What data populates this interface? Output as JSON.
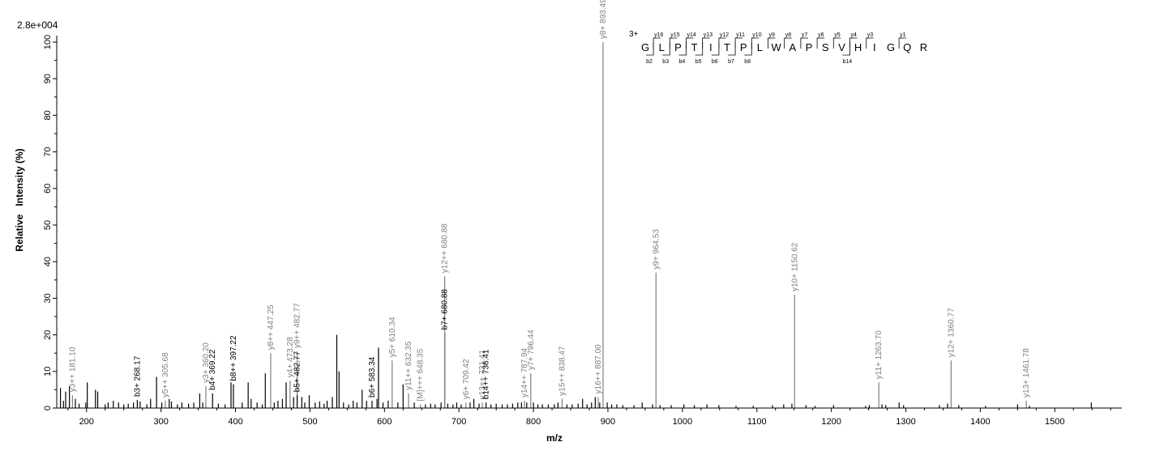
{
  "chart_data": {
    "type": "bar",
    "scale_label": "2.8e+004",
    "xlabel": "m/z",
    "ylabel": "Relative   Intensity (%)",
    "xlim": [
      160,
      1590
    ],
    "ylim": [
      0,
      100
    ],
    "x_ticks": [
      200,
      300,
      400,
      500,
      600,
      700,
      800,
      900,
      1000,
      1100,
      1200,
      1300,
      1400,
      1500
    ],
    "y_ticks": [
      0,
      10,
      20,
      30,
      40,
      50,
      60,
      70,
      80,
      90,
      100
    ],
    "colors": {
      "b_ion": "#000000",
      "y_ion": "#808080",
      "noise": "#000000"
    },
    "labeled_peaks": [
      {
        "x": 181.1,
        "y": 3.5,
        "label": "y3++ 181.10",
        "type": "y"
      },
      {
        "x": 268.17,
        "y": 2.2,
        "label": "b3+ 268.17",
        "type": "b"
      },
      {
        "x": 305.68,
        "y": 2.0,
        "label": "y5++ 305.68",
        "type": "y"
      },
      {
        "x": 360.2,
        "y": 6.0,
        "label": "y3+ 360.20",
        "type": "y"
      },
      {
        "x": 369.22,
        "y": 4.0,
        "label": "b4+ 369.22",
        "type": "b"
      },
      {
        "x": 397.22,
        "y": 6.5,
        "label": "b8++ 397.22",
        "type": "b"
      },
      {
        "x": 447.25,
        "y": 15.0,
        "label": "y8++ 447.25",
        "type": "y"
      },
      {
        "x": 473.28,
        "y": 7.5,
        "label": "y4+ 473.28",
        "type": "y"
      },
      {
        "x": 482.77,
        "y": 15.5,
        "label": "y9++ 482.77",
        "type": "y"
      },
      {
        "x": 482.77,
        "y": 3.5,
        "label": "b5+ 482.77",
        "type": "b"
      },
      {
        "x": 583.34,
        "y": 2.0,
        "label": "b6+ 583.34",
        "type": "b"
      },
      {
        "x": 610.34,
        "y": 13.0,
        "label": "y5+ 610.34",
        "type": "y"
      },
      {
        "x": 632.35,
        "y": 4.0,
        "label": "y11++ 632.35",
        "type": "y"
      },
      {
        "x": 648.35,
        "y": 1.0,
        "label": "[M]+++ 648.35",
        "type": "y"
      },
      {
        "x": 680.88,
        "y": 20.5,
        "label": "b7+ 680.88",
        "type": "b"
      },
      {
        "x": 680.88,
        "y": 36.0,
        "label": "y12++ 680.88",
        "type": "y"
      },
      {
        "x": 709.42,
        "y": 1.5,
        "label": "y6+ 709.42",
        "type": "y"
      },
      {
        "x": 731.41,
        "y": 1.5,
        "label": "y13++ 731.41",
        "type": "y"
      },
      {
        "x": 736.41,
        "y": 1.5,
        "label": "b14++ 736.41",
        "type": "b"
      },
      {
        "x": 787.94,
        "y": 2.0,
        "label": "y14++ 787.94",
        "type": "y"
      },
      {
        "x": 796.44,
        "y": 9.5,
        "label": "y7+ 796.44",
        "type": "y"
      },
      {
        "x": 838.47,
        "y": 2.5,
        "label": "y15++ 838.47",
        "type": "y"
      },
      {
        "x": 887.0,
        "y": 3.0,
        "label": "y16++ 887.00",
        "type": "y"
      },
      {
        "x": 893.49,
        "y": 100,
        "label": "y8+ 893.49",
        "type": "y"
      },
      {
        "x": 964.53,
        "y": 37.0,
        "label": "y9+ 964.53",
        "type": "y"
      },
      {
        "x": 1150.62,
        "y": 31.0,
        "label": "y10+ 1150.62",
        "type": "y"
      },
      {
        "x": 1263.7,
        "y": 7.0,
        "label": "y11+ 1263.70",
        "type": "y"
      },
      {
        "x": 1360.77,
        "y": 13.0,
        "label": "y12+ 1360.77",
        "type": "y"
      },
      {
        "x": 1461.78,
        "y": 2.0,
        "label": "y13+ 1461.78",
        "type": "y"
      }
    ],
    "unlabeled_peaks": [
      {
        "x": 165,
        "y": 5.5
      },
      {
        "x": 169,
        "y": 2.0
      },
      {
        "x": 172,
        "y": 4.5
      },
      {
        "x": 177,
        "y": 6.0
      },
      {
        "x": 185,
        "y": 2.5
      },
      {
        "x": 190,
        "y": 1.2
      },
      {
        "x": 199,
        "y": 1.5
      },
      {
        "x": 201,
        "y": 7.0
      },
      {
        "x": 212,
        "y": 5.0
      },
      {
        "x": 215,
        "y": 4.5
      },
      {
        "x": 225,
        "y": 1.0
      },
      {
        "x": 229,
        "y": 1.5
      },
      {
        "x": 236,
        "y": 2.0
      },
      {
        "x": 243,
        "y": 1.5
      },
      {
        "x": 250,
        "y": 1.0
      },
      {
        "x": 256,
        "y": 1.2
      },
      {
        "x": 263,
        "y": 1.5
      },
      {
        "x": 272,
        "y": 1.8
      },
      {
        "x": 281,
        "y": 1.0
      },
      {
        "x": 286,
        "y": 2.5
      },
      {
        "x": 294,
        "y": 8.5
      },
      {
        "x": 301,
        "y": 1.5
      },
      {
        "x": 311,
        "y": 2.5
      },
      {
        "x": 314,
        "y": 1.8
      },
      {
        "x": 322,
        "y": 1.0
      },
      {
        "x": 328,
        "y": 1.5
      },
      {
        "x": 337,
        "y": 1.2
      },
      {
        "x": 344,
        "y": 1.5
      },
      {
        "x": 352,
        "y": 4.0
      },
      {
        "x": 356,
        "y": 1.5
      },
      {
        "x": 377,
        "y": 1.2
      },
      {
        "x": 386,
        "y": 1.0
      },
      {
        "x": 394,
        "y": 7.0
      },
      {
        "x": 409,
        "y": 1.5
      },
      {
        "x": 417,
        "y": 7.0
      },
      {
        "x": 421,
        "y": 2.5
      },
      {
        "x": 429,
        "y": 1.5
      },
      {
        "x": 436,
        "y": 1.0
      },
      {
        "x": 440,
        "y": 9.5
      },
      {
        "x": 452,
        "y": 1.5
      },
      {
        "x": 457,
        "y": 2.0
      },
      {
        "x": 463,
        "y": 2.5
      },
      {
        "x": 468,
        "y": 7.0
      },
      {
        "x": 478,
        "y": 3.0
      },
      {
        "x": 489,
        "y": 3.0
      },
      {
        "x": 493,
        "y": 1.5
      },
      {
        "x": 499,
        "y": 3.5
      },
      {
        "x": 507,
        "y": 1.5
      },
      {
        "x": 513,
        "y": 1.8
      },
      {
        "x": 519,
        "y": 1.2
      },
      {
        "x": 523,
        "y": 2.0
      },
      {
        "x": 530,
        "y": 3.0
      },
      {
        "x": 536,
        "y": 20.0
      },
      {
        "x": 539,
        "y": 10.0
      },
      {
        "x": 545,
        "y": 1.5
      },
      {
        "x": 552,
        "y": 1.0
      },
      {
        "x": 558,
        "y": 2.0
      },
      {
        "x": 563,
        "y": 1.5
      },
      {
        "x": 570,
        "y": 5.0
      },
      {
        "x": 576,
        "y": 2.0
      },
      {
        "x": 590,
        "y": 2.5
      },
      {
        "x": 592,
        "y": 16.5
      },
      {
        "x": 598,
        "y": 1.5
      },
      {
        "x": 605,
        "y": 2.0
      },
      {
        "x": 618,
        "y": 1.5
      },
      {
        "x": 625,
        "y": 6.5
      },
      {
        "x": 640,
        "y": 1.5
      },
      {
        "x": 655,
        "y": 1.0
      },
      {
        "x": 662,
        "y": 1.2
      },
      {
        "x": 668,
        "y": 1.0
      },
      {
        "x": 676,
        "y": 1.5
      },
      {
        "x": 685,
        "y": 1.2
      },
      {
        "x": 692,
        "y": 1.0
      },
      {
        "x": 697,
        "y": 1.5
      },
      {
        "x": 703,
        "y": 1.0
      },
      {
        "x": 715,
        "y": 1.5
      },
      {
        "x": 720,
        "y": 2.5
      },
      {
        "x": 727,
        "y": 1.2
      },
      {
        "x": 743,
        "y": 1.0
      },
      {
        "x": 750,
        "y": 1.2
      },
      {
        "x": 758,
        "y": 1.0
      },
      {
        "x": 765,
        "y": 1.0
      },
      {
        "x": 772,
        "y": 1.2
      },
      {
        "x": 779,
        "y": 1.5
      },
      {
        "x": 784,
        "y": 1.5
      },
      {
        "x": 791,
        "y": 1.5
      },
      {
        "x": 800,
        "y": 1.5
      },
      {
        "x": 806,
        "y": 1.0
      },
      {
        "x": 812,
        "y": 1.0
      },
      {
        "x": 820,
        "y": 1.0
      },
      {
        "x": 828,
        "y": 1.0
      },
      {
        "x": 833,
        "y": 1.5
      },
      {
        "x": 845,
        "y": 1.0
      },
      {
        "x": 852,
        "y": 1.0
      },
      {
        "x": 860,
        "y": 1.2
      },
      {
        "x": 866,
        "y": 2.5
      },
      {
        "x": 872,
        "y": 1.0
      },
      {
        "x": 878,
        "y": 1.5
      },
      {
        "x": 883,
        "y": 3.0
      },
      {
        "x": 889,
        "y": 1.5
      },
      {
        "x": 899,
        "y": 1.5
      },
      {
        "x": 905,
        "y": 1.0
      },
      {
        "x": 912,
        "y": 1.0
      },
      {
        "x": 920,
        "y": 0.8
      },
      {
        "x": 935,
        "y": 0.8
      },
      {
        "x": 946,
        "y": 1.5
      },
      {
        "x": 960,
        "y": 1.0
      },
      {
        "x": 970,
        "y": 0.8
      },
      {
        "x": 985,
        "y": 0.8
      },
      {
        "x": 1002,
        "y": 1.0
      },
      {
        "x": 1016,
        "y": 0.8
      },
      {
        "x": 1033,
        "y": 1.0
      },
      {
        "x": 1049,
        "y": 0.8
      },
      {
        "x": 1072,
        "y": 0.6
      },
      {
        "x": 1095,
        "y": 0.6
      },
      {
        "x": 1121,
        "y": 0.8
      },
      {
        "x": 1136,
        "y": 1.0
      },
      {
        "x": 1147,
        "y": 1.2
      },
      {
        "x": 1166,
        "y": 0.8
      },
      {
        "x": 1178,
        "y": 0.6
      },
      {
        "x": 1203,
        "y": 0.8
      },
      {
        "x": 1246,
        "y": 0.6
      },
      {
        "x": 1251,
        "y": 0.8
      },
      {
        "x": 1268,
        "y": 1.0
      },
      {
        "x": 1273,
        "y": 0.8
      },
      {
        "x": 1291,
        "y": 1.5
      },
      {
        "x": 1297,
        "y": 0.8
      },
      {
        "x": 1345,
        "y": 0.8
      },
      {
        "x": 1356,
        "y": 1.2
      },
      {
        "x": 1371,
        "y": 0.8
      },
      {
        "x": 1407,
        "y": 0.6
      },
      {
        "x": 1450,
        "y": 1.0
      },
      {
        "x": 1466,
        "y": 0.6
      },
      {
        "x": 1549,
        "y": 1.5
      }
    ],
    "sequence_annotation": {
      "charge": "3+",
      "residues": [
        "G",
        "L",
        "P",
        "T",
        "I",
        "T",
        "P",
        "L",
        "W",
        "A",
        "P",
        "S",
        "V",
        "H",
        "I",
        "G",
        "Q",
        "R"
      ],
      "y_ions": [
        {
          "label": "y16",
          "after": 1
        },
        {
          "label": "y15",
          "after": 2
        },
        {
          "label": "y14",
          "after": 3
        },
        {
          "label": "y13",
          "after": 4
        },
        {
          "label": "y12",
          "after": 5
        },
        {
          "label": "y11",
          "after": 6
        },
        {
          "label": "y10",
          "after": 7
        },
        {
          "label": "y9",
          "after": 8
        },
        {
          "label": "y8",
          "after": 9
        },
        {
          "label": "y7",
          "after": 10
        },
        {
          "label": "y6",
          "after": 11
        },
        {
          "label": "y5",
          "after": 12
        },
        {
          "label": "y4",
          "after": 13
        },
        {
          "label": "y3",
          "after": 14
        },
        {
          "label": "y1",
          "after": 16
        }
      ],
      "b_ions": [
        {
          "label": "b2",
          "after": 1
        },
        {
          "label": "b3",
          "after": 2
        },
        {
          "label": "b4",
          "after": 3
        },
        {
          "label": "b5",
          "after": 4
        },
        {
          "label": "b6",
          "after": 5
        },
        {
          "label": "b7",
          "after": 6
        },
        {
          "label": "b8",
          "after": 7
        },
        {
          "label": "b14",
          "after": 13
        }
      ]
    }
  }
}
